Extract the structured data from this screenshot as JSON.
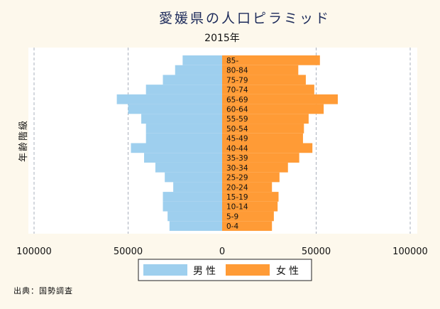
{
  "chart_data": {
    "type": "bar",
    "orientation": "horizontal",
    "layout": "population-pyramid",
    "title": "愛媛県の人口ピラミッド",
    "subtitle": "2015年",
    "ylabel": "年齢階級",
    "xlim": [
      -100000,
      100000
    ],
    "xticks": [
      -100000,
      -50000,
      0,
      50000,
      100000
    ],
    "xtick_labels": [
      "100000",
      "50000",
      "0",
      "50000",
      "100000"
    ],
    "grid": true,
    "legend_position": "bottom",
    "categories": [
      "0-4",
      "5-9",
      "10-14",
      "15-19",
      "20-24",
      "25-29",
      "30-34",
      "35-39",
      "40-44",
      "45-49",
      "50-54",
      "55-59",
      "60-64",
      "65-69",
      "70-74",
      "75-79",
      "80-84",
      "85-"
    ],
    "series": [
      {
        "name": "男性",
        "color": "#9ecfee",
        "side": "left",
        "values": [
          28000,
          29000,
          31500,
          31500,
          26000,
          30500,
          35500,
          41500,
          48500,
          40500,
          40500,
          43000,
          50000,
          56000,
          40500,
          31500,
          25000,
          21000
        ]
      },
      {
        "name": "女性",
        "color": "#ff9b36",
        "side": "right",
        "values": [
          26500,
          27500,
          29500,
          30000,
          26500,
          30500,
          35000,
          41000,
          48000,
          43000,
          43500,
          46000,
          54000,
          61500,
          49000,
          44500,
          40500,
          52000
        ]
      }
    ]
  },
  "source_note": "出典：国勢調査"
}
